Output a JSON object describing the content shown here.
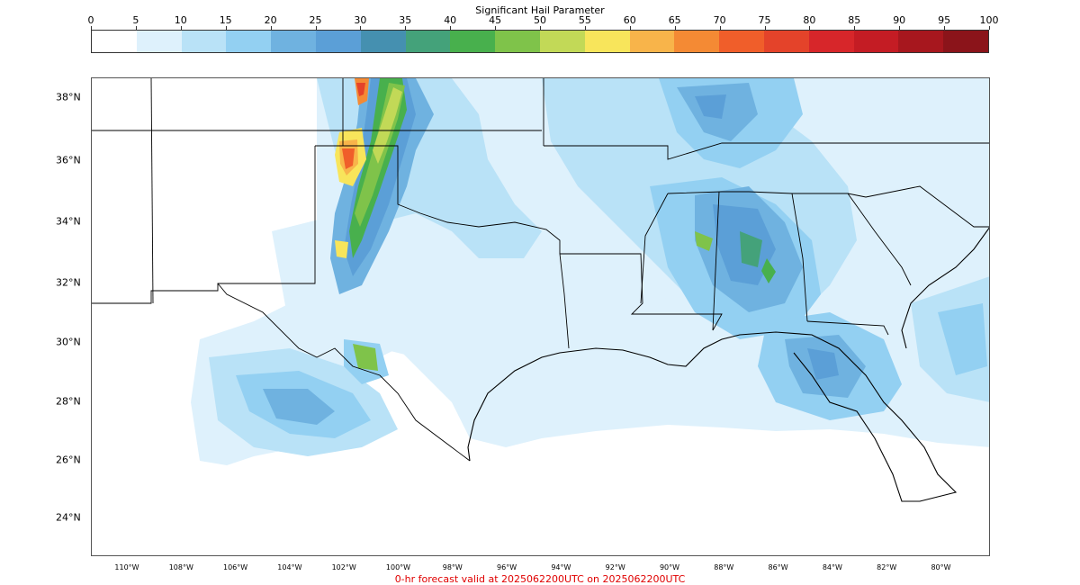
{
  "colorbar": {
    "title": "Significant Hail Parameter",
    "ticks": [
      "0",
      "5",
      "10",
      "15",
      "20",
      "25",
      "30",
      "35",
      "40",
      "45",
      "50",
      "55",
      "60",
      "65",
      "70",
      "75",
      "80",
      "85",
      "90",
      "95",
      "100"
    ],
    "colors": [
      "#ffffff",
      "#def1fc",
      "#b9e2f7",
      "#93d0f2",
      "#6fb2e0",
      "#5b9fd7",
      "#4590b0",
      "#44a27a",
      "#48b04d",
      "#7fc34a",
      "#c2d957",
      "#f8e55b",
      "#f8b44a",
      "#f48a34",
      "#f05e2a",
      "#e4432a",
      "#d7262a",
      "#c41c24",
      "#a7171e",
      "#8b141a"
    ]
  },
  "map": {
    "lat_labels": [
      "38°N",
      "36°N",
      "34°N",
      "32°N",
      "30°N",
      "28°N",
      "26°N",
      "24°N"
    ],
    "lon_labels": [
      "110°W",
      "108°W",
      "106°W",
      "104°W",
      "102°W",
      "100°W",
      "98°W",
      "96°W",
      "94°W",
      "92°W",
      "90°W",
      "88°W",
      "86°W",
      "84°W",
      "82°W",
      "80°W"
    ]
  },
  "footer": {
    "valid_time": "0-hr forecast valid at 2025062200UTC on 2025062200UTC"
  }
}
